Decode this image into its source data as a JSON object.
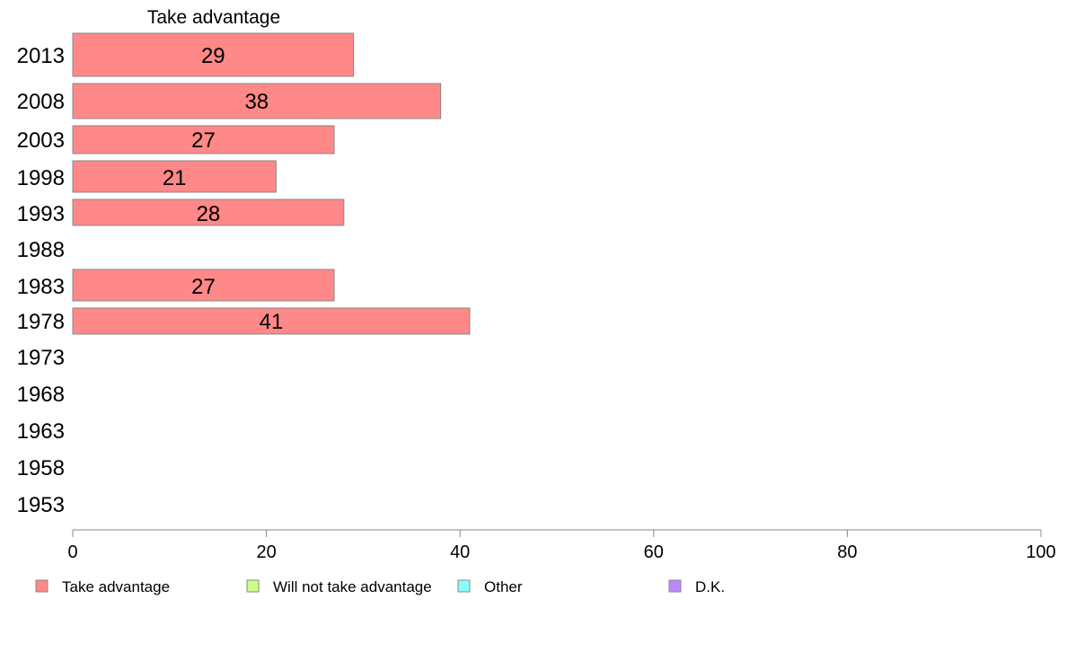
{
  "chart_data": {
    "type": "bar",
    "orientation": "horizontal",
    "title": "Take advantage",
    "categories": [
      "2013",
      "2008",
      "2003",
      "1998",
      "1993",
      "1988",
      "1983",
      "1978",
      "1973",
      "1968",
      "1963",
      "1958",
      "1953"
    ],
    "series": [
      {
        "name": "Take advantage",
        "color": "#ff8888",
        "values": [
          29,
          38,
          27,
          21,
          28,
          null,
          27,
          41,
          null,
          null,
          null,
          null,
          null
        ]
      }
    ],
    "xlim": [
      0,
      100
    ],
    "xticks": [
      0,
      20,
      40,
      60,
      80,
      100
    ],
    "grid": false,
    "legend": {
      "position": "bottom",
      "items": [
        {
          "label": "Take advantage",
          "color": "#ff8888"
        },
        {
          "label": "Will not take advantage",
          "color": "#ccff88"
        },
        {
          "label": "Other",
          "color": "#88ffff"
        },
        {
          "label": "D.K.",
          "color": "#bb88ff"
        }
      ]
    }
  }
}
